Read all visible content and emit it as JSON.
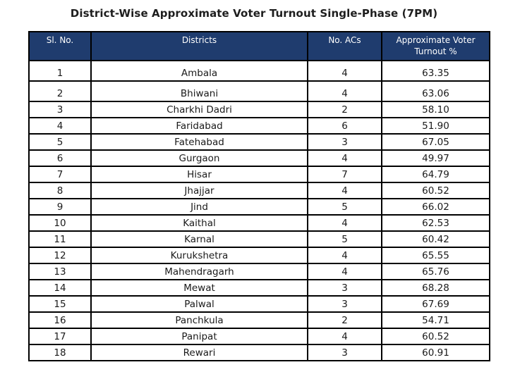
{
  "title": "District-Wise Approximate Voter Turnout Single-Phase (7PM)",
  "table": {
    "headers": [
      "Sl. No.",
      "Districts",
      "No. ACs",
      "Approximate Voter Turnout %"
    ],
    "rows": [
      {
        "sl": "1",
        "district": "Ambala",
        "acs": "4",
        "turnout": "63.35"
      },
      {
        "sl": "2",
        "district": "Bhiwani",
        "acs": "4",
        "turnout": "63.06"
      },
      {
        "sl": "3",
        "district": "Charkhi Dadri",
        "acs": "2",
        "turnout": "58.10"
      },
      {
        "sl": "4",
        "district": "Faridabad",
        "acs": "6",
        "turnout": "51.90"
      },
      {
        "sl": "5",
        "district": "Fatehabad",
        "acs": "3",
        "turnout": "67.05"
      },
      {
        "sl": "6",
        "district": "Gurgaon",
        "acs": "4",
        "turnout": "49.97"
      },
      {
        "sl": "7",
        "district": "Hisar",
        "acs": "7",
        "turnout": "64.79"
      },
      {
        "sl": "8",
        "district": "Jhajjar",
        "acs": "4",
        "turnout": "60.52"
      },
      {
        "sl": "9",
        "district": "Jind",
        "acs": "5",
        "turnout": "66.02"
      },
      {
        "sl": "10",
        "district": "Kaithal",
        "acs": "4",
        "turnout": "62.53"
      },
      {
        "sl": "11",
        "district": "Karnal",
        "acs": "5",
        "turnout": "60.42"
      },
      {
        "sl": "12",
        "district": "Kurukshetra",
        "acs": "4",
        "turnout": "65.55"
      },
      {
        "sl": "13",
        "district": "Mahendragarh",
        "acs": "4",
        "turnout": "65.76"
      },
      {
        "sl": "14",
        "district": "Mewat",
        "acs": "3",
        "turnout": "68.28"
      },
      {
        "sl": "15",
        "district": "Palwal",
        "acs": "3",
        "turnout": "67.69"
      },
      {
        "sl": "16",
        "district": "Panchkula",
        "acs": "2",
        "turnout": "54.71"
      },
      {
        "sl": "17",
        "district": "Panipat",
        "acs": "4",
        "turnout": "60.52"
      },
      {
        "sl": "18",
        "district": "Rewari",
        "acs": "3",
        "turnout": "60.91"
      }
    ]
  }
}
